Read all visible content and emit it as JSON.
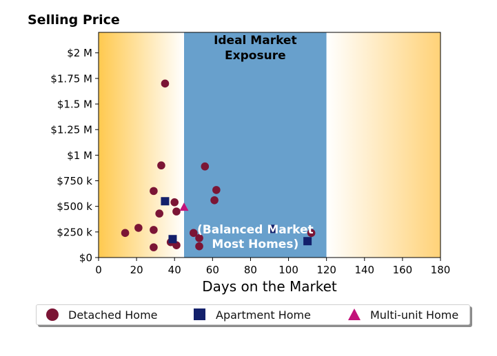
{
  "chart_data": {
    "type": "scatter",
    "title": "Selling Price",
    "xlabel": "Days on the Market",
    "ylabel": "",
    "xlim": [
      0,
      180
    ],
    "ylim": [
      0,
      2200000
    ],
    "x_ticks": [
      {
        "value": 0,
        "label": "0"
      },
      {
        "value": 20,
        "label": "20"
      },
      {
        "value": 40,
        "label": "40"
      },
      {
        "value": 60,
        "label": "60"
      },
      {
        "value": 80,
        "label": "80"
      },
      {
        "value": 100,
        "label": "100"
      },
      {
        "value": 120,
        "label": "120"
      },
      {
        "value": 140,
        "label": "140"
      },
      {
        "value": 160,
        "label": "160"
      },
      {
        "value": 180,
        "label": "180"
      }
    ],
    "y_ticks": [
      {
        "value": 0,
        "label": "$0"
      },
      {
        "value": 250000,
        "label": "$250 k"
      },
      {
        "value": 500000,
        "label": "$500 k"
      },
      {
        "value": 750000,
        "label": "$750 k"
      },
      {
        "value": 1000000,
        "label": "$1 M"
      },
      {
        "value": 1250000,
        "label": "$1.25 M"
      },
      {
        "value": 1500000,
        "label": "$1.5 M"
      },
      {
        "value": 1750000,
        "label": "$1.75 M"
      },
      {
        "value": 2000000,
        "label": "$2 M"
      }
    ],
    "grid": false,
    "legend_position": "bottom",
    "regions": [
      {
        "x_start": 0,
        "x_end": 45,
        "style": "gradient",
        "from_color": "#ffc94f",
        "to_color": "#ffffff"
      },
      {
        "x_start": 45,
        "x_end": 120,
        "style": "solid",
        "color": "#68a0cc",
        "label_top": [
          "Ideal Market",
          "Exposure"
        ],
        "label_bottom": [
          "(Balanced Market",
          "Most Homes)"
        ]
      },
      {
        "x_start": 120,
        "x_end": 180,
        "style": "gradient",
        "from_color": "#ffffff",
        "to_color": "#ffd278"
      }
    ],
    "series": [
      {
        "name": "Detached Home",
        "marker": "circle",
        "color": "#7b1535",
        "points": [
          {
            "x": 14,
            "y": 240000
          },
          {
            "x": 21,
            "y": 290000
          },
          {
            "x": 29,
            "y": 100000
          },
          {
            "x": 29,
            "y": 270000
          },
          {
            "x": 29,
            "y": 650000
          },
          {
            "x": 32,
            "y": 430000
          },
          {
            "x": 33,
            "y": 900000
          },
          {
            "x": 35,
            "y": 1700000
          },
          {
            "x": 38,
            "y": 150000
          },
          {
            "x": 40,
            "y": 540000
          },
          {
            "x": 41,
            "y": 120000
          },
          {
            "x": 41,
            "y": 450000
          },
          {
            "x": 50,
            "y": 240000
          },
          {
            "x": 53,
            "y": 110000
          },
          {
            "x": 53,
            "y": 190000
          },
          {
            "x": 56,
            "y": 890000
          },
          {
            "x": 61,
            "y": 560000
          },
          {
            "x": 62,
            "y": 660000
          },
          {
            "x": 112,
            "y": 240000
          }
        ]
      },
      {
        "name": "Apartment Home",
        "marker": "square",
        "color": "#13206b",
        "points": [
          {
            "x": 35,
            "y": 550000
          },
          {
            "x": 39,
            "y": 180000
          },
          {
            "x": 92,
            "y": 280000
          },
          {
            "x": 110,
            "y": 160000
          }
        ]
      },
      {
        "name": "Multi-unit Home",
        "marker": "triangle",
        "color": "#c2127a",
        "points": [
          {
            "x": 45,
            "y": 490000
          }
        ]
      }
    ]
  }
}
